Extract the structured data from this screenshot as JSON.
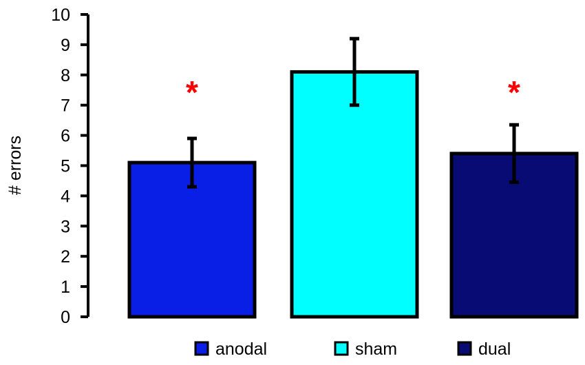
{
  "chart_data": {
    "type": "bar",
    "title": "",
    "xlabel": "",
    "ylabel": "# errors",
    "ylim": [
      0,
      10
    ],
    "yticks": [
      0,
      1,
      2,
      3,
      4,
      5,
      6,
      7,
      8,
      9,
      10
    ],
    "grid": false,
    "legend_position": "bottom",
    "categories": [
      "anodal",
      "sham",
      "dual"
    ],
    "values": [
      5.1,
      8.1,
      5.4
    ],
    "error": [
      0.8,
      1.1,
      0.95
    ],
    "colors": [
      "#0a1fe6",
      "#00ffff",
      "#070b73"
    ],
    "annotations": [
      {
        "category": "anodal",
        "text": "*"
      },
      {
        "category": "dual",
        "text": "*"
      }
    ]
  }
}
